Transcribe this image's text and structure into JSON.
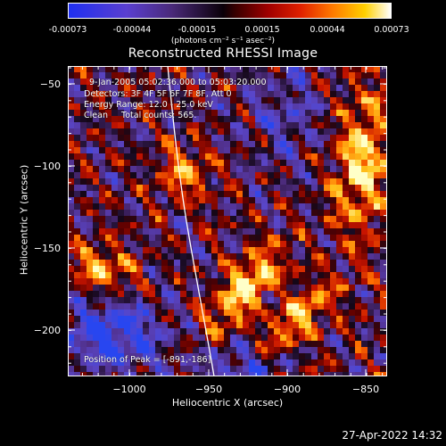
{
  "colorbar": {
    "ticks": [
      "-0.00073",
      "-0.00044",
      "-0.00015",
      "0.00015",
      "0.00044",
      "0.00073"
    ],
    "unit_label": "(photons cm⁻² s⁻¹ asec⁻²)"
  },
  "plot": {
    "title": "Reconstructed RHESSI Image",
    "xlabel": "Heliocentric X (arcsec)",
    "ylabel": "Heliocentric Y (arcsec)",
    "xticks": [
      "−1000",
      "−950",
      "−900",
      "−850"
    ],
    "yticks": [
      "−50",
      "−100",
      "−150",
      "−200"
    ],
    "info_lines": [
      "9-Jan-2005 05:02:36.000 to 05:03:20.000",
      "Detectors: 3F 4F 5F 6F 7F 8F, Att 0",
      "Energy Range: 12.0 - 25.0 keV",
      "Clean     Total counts: 565."
    ],
    "peak_text": "Position of Peak = [-891,-186]"
  },
  "timestamp": "27-Apr-2022 14:32",
  "colors": {
    "background": "#000000",
    "limb": "#ffffff"
  }
}
